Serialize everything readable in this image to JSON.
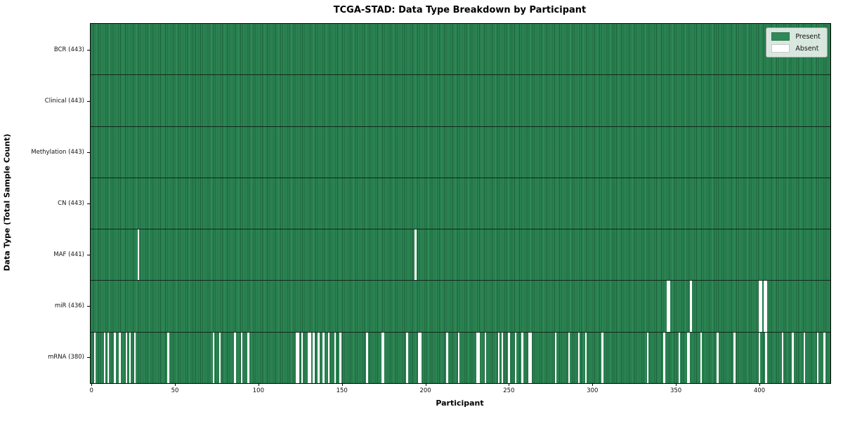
{
  "title": "TCGA-STAD: Data Type Breakdown by Participant",
  "xlabel": "Participant",
  "ylabel": "Data Type (Total Sample Count)",
  "legend": {
    "present_label": "Present",
    "absent_label": "Absent"
  },
  "colors": {
    "present": "#2e8b57",
    "present_edge": "#1c5c38",
    "absent": "#ffffff",
    "row_separator": "#10281a",
    "spine": "#000000"
  },
  "chart_data": {
    "type": "heatmap",
    "title": "TCGA-STAD: Data Type Breakdown by Participant",
    "xlabel": "Participant",
    "ylabel": "Data Type (Total Sample Count)",
    "n_participants": 443,
    "x_ticks": [
      0,
      50,
      100,
      150,
      200,
      250,
      300,
      350,
      400
    ],
    "grid": false,
    "legend_position": "upper right",
    "legend": [
      {
        "label": "Present",
        "color": "#2e8b57"
      },
      {
        "label": "Absent",
        "color": "#ffffff"
      }
    ],
    "rows": [
      {
        "name": "BCR",
        "label": "BCR (443)",
        "present_count": 443,
        "absent_participants": []
      },
      {
        "name": "Clinical",
        "label": "Clinical (443)",
        "present_count": 443,
        "absent_participants": []
      },
      {
        "name": "Methylation",
        "label": "Methylation (443)",
        "present_count": 443,
        "absent_participants": []
      },
      {
        "name": "CN",
        "label": "CN (443)",
        "present_count": 443,
        "absent_participants": []
      },
      {
        "name": "MAF",
        "label": "MAF (441)",
        "present_count": 441,
        "absent_participants": [
          28,
          194
        ]
      },
      {
        "name": "miR",
        "label": "miR (436)",
        "present_count": 436,
        "absent_participants": [
          345,
          346,
          359,
          400,
          401,
          403,
          404
        ]
      },
      {
        "name": "mRNA",
        "label": "mRNA (380)",
        "present_count": 380,
        "absent_participants": [
          2,
          8,
          10,
          14,
          17,
          21,
          23,
          26,
          46,
          73,
          77,
          86,
          90,
          94,
          123,
          124,
          126,
          130,
          131,
          133,
          136,
          139,
          142,
          146,
          149,
          165,
          174,
          175,
          189,
          196,
          197,
          213,
          220,
          231,
          232,
          236,
          244,
          246,
          250,
          254,
          258,
          262,
          263,
          278,
          286,
          292,
          296,
          306,
          333,
          343,
          352,
          357,
          358,
          365,
          375,
          385,
          400,
          404,
          414,
          420,
          427,
          435,
          439
        ]
      }
    ]
  }
}
